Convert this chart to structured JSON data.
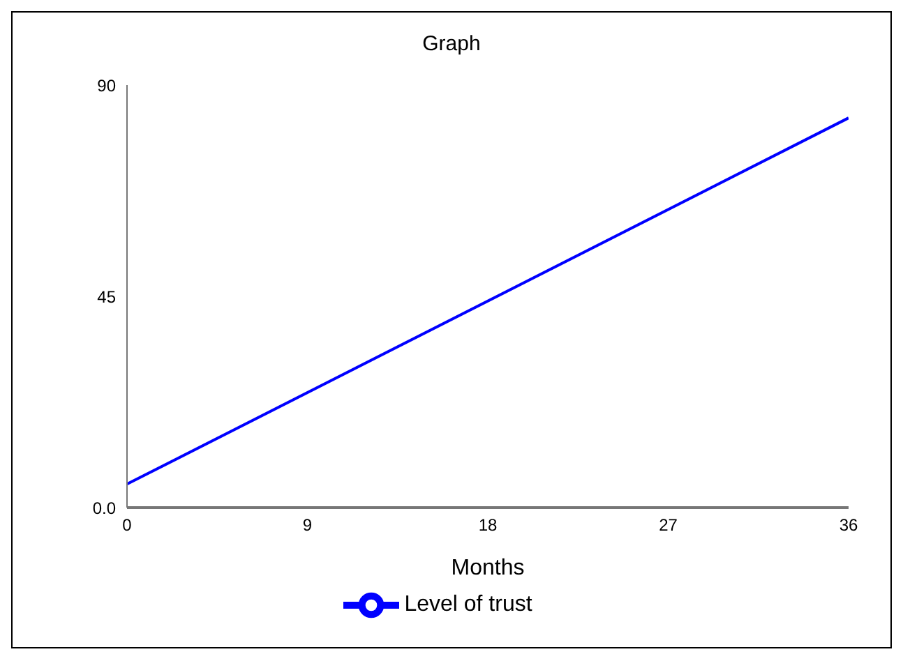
{
  "chart_data": {
    "type": "line",
    "title": "Graph",
    "xlabel": "Months",
    "x": [
      0,
      36
    ],
    "series": [
      {
        "name": "Level of trust",
        "color": "#0000ff",
        "values": [
          5,
          83
        ]
      }
    ],
    "xlim": [
      0,
      36
    ],
    "xticks": [
      0,
      9,
      18,
      27,
      36
    ],
    "ylim": [
      0,
      90
    ],
    "yticks": [
      {
        "value": 0,
        "label": "0.0"
      },
      90,
      45
    ],
    "grid": false,
    "legend": "bottom",
    "marker": "none",
    "line_style": "solid"
  }
}
